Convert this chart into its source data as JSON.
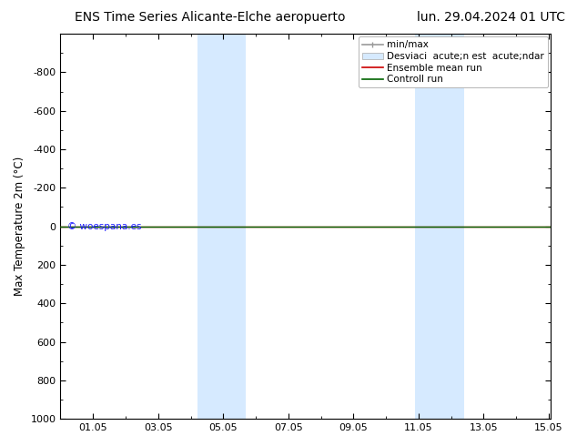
{
  "title_left": "ENS Time Series Alicante-Elche aeropuerto",
  "title_right": "lun. 29.04.2024 01 UTC",
  "ylabel": "Max Temperature 2m (°C)",
  "xlabel": "",
  "ylim_bottom": 1000,
  "ylim_top": -1000,
  "yticks": [
    1000,
    800,
    600,
    400,
    200,
    0,
    -200,
    -400,
    -600,
    -800
  ],
  "xlim_start": 0,
  "xlim_end": 15.05,
  "xtick_labels": [
    "01.05",
    "03.05",
    "05.05",
    "07.05",
    "09.05",
    "11.05",
    "13.05",
    "15.05"
  ],
  "xtick_positions": [
    1,
    3,
    5,
    7,
    9,
    11,
    13,
    15
  ],
  "watermark": "© woespana.es",
  "watermark_color": "#1a1aff",
  "bg_color": "#ffffff",
  "plot_bg_color": "#ffffff",
  "shaded_bands": [
    {
      "xmin": 4.2,
      "xmax": 5.7,
      "color": "#d6eaff",
      "alpha": 1.0
    },
    {
      "xmin": 10.9,
      "xmax": 12.4,
      "color": "#d6eaff",
      "alpha": 1.0
    }
  ],
  "green_line_y": 0,
  "green_line_color": "#006400",
  "red_line_y": 0,
  "red_line_color": "#cc0000",
  "legend_label_minmax": "min/max",
  "legend_label_std": "Desviaci  acute;n est  acute;ndar",
  "legend_label_ensemble": "Ensemble mean run",
  "legend_label_control": "Controll run",
  "legend_minmax_color": "#999999",
  "legend_std_color": "#d6eaff",
  "legend_ensemble_color": "#cc0000",
  "legend_control_color": "#006400",
  "title_fontsize": 10,
  "axis_fontsize": 8.5,
  "tick_fontsize": 8,
  "legend_fontsize": 7.5
}
